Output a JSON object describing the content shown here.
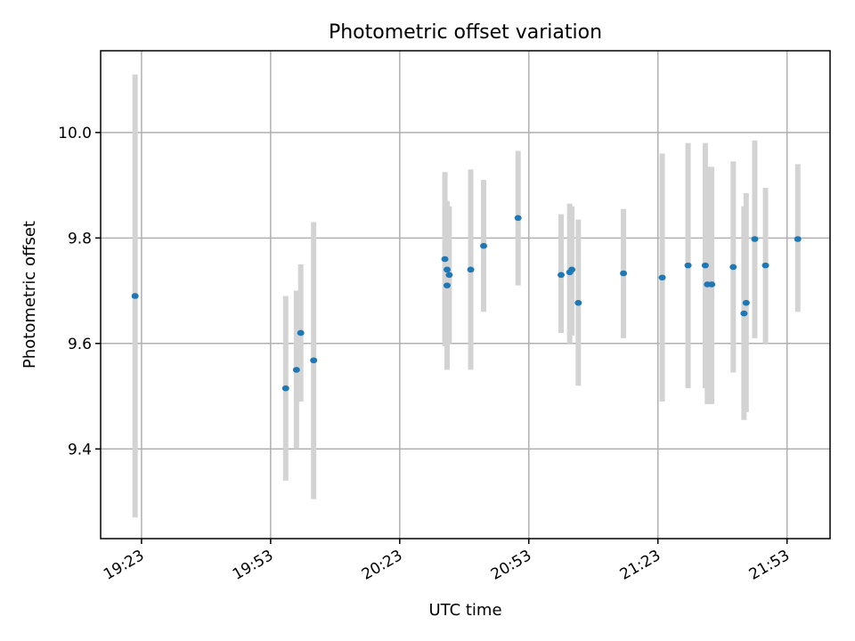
{
  "chart_data": {
    "type": "scatter",
    "title": "Photometric offset variation",
    "xlabel": "UTC time",
    "ylabel": "Photometric offset",
    "x_ticks": [
      "19:23",
      "19:53",
      "20:23",
      "20:53",
      "21:23",
      "21:53"
    ],
    "y_ticks": [
      9.4,
      9.6,
      9.8,
      10.0
    ],
    "y_tick_labels": [
      "9.4",
      "9.6",
      "9.8",
      "10.0"
    ],
    "xlim": [
      "19:13.5",
      "22:03"
    ],
    "ylim": [
      9.23,
      10.155
    ],
    "grid": true,
    "marker_color": "#1f77b4",
    "errorbar_color": "#d3d3d3",
    "points": [
      {
        "x": "19:21.5",
        "y": 9.69,
        "ymin": 9.27,
        "ymax": 10.11
      },
      {
        "x": "19:56.5",
        "y": 9.515,
        "ymin": 9.34,
        "ymax": 9.69
      },
      {
        "x": "19:59.0",
        "y": 9.55,
        "ymin": 9.4,
        "ymax": 9.7
      },
      {
        "x": "20:00.0",
        "y": 9.62,
        "ymin": 9.49,
        "ymax": 9.75
      },
      {
        "x": "20:03.0",
        "y": 9.568,
        "ymin": 9.305,
        "ymax": 9.83
      },
      {
        "x": "20:33.5",
        "y": 9.76,
        "ymin": 9.595,
        "ymax": 9.925
      },
      {
        "x": "20:34.0",
        "y": 9.71,
        "ymin": 9.55,
        "ymax": 9.87
      },
      {
        "x": "20:34.0",
        "y": 9.74,
        "ymin": 9.62,
        "ymax": 9.86
      },
      {
        "x": "20:34.5",
        "y": 9.73,
        "ymin": 9.6,
        "ymax": 9.86
      },
      {
        "x": "20:39.5",
        "y": 9.74,
        "ymin": 9.55,
        "ymax": 9.93
      },
      {
        "x": "20:42.5",
        "y": 9.785,
        "ymin": 9.66,
        "ymax": 9.91
      },
      {
        "x": "20:50.5",
        "y": 9.838,
        "ymin": 9.71,
        "ymax": 9.965
      },
      {
        "x": "21:00.5",
        "y": 9.73,
        "ymin": 9.62,
        "ymax": 9.845
      },
      {
        "x": "21:02.5",
        "y": 9.735,
        "ymin": 9.6,
        "ymax": 9.865
      },
      {
        "x": "21:03.0",
        "y": 9.74,
        "ymin": 9.615,
        "ymax": 9.86
      },
      {
        "x": "21:04.5",
        "y": 9.677,
        "ymin": 9.52,
        "ymax": 9.835
      },
      {
        "x": "21:15.0",
        "y": 9.733,
        "ymin": 9.61,
        "ymax": 9.855
      },
      {
        "x": "21:24.0",
        "y": 9.725,
        "ymin": 9.49,
        "ymax": 9.96
      },
      {
        "x": "21:30.0",
        "y": 9.748,
        "ymin": 9.515,
        "ymax": 9.98
      },
      {
        "x": "21:34.0",
        "y": 9.748,
        "ymin": 9.515,
        "ymax": 9.98
      },
      {
        "x": "21:34.5",
        "y": 9.712,
        "ymin": 9.485,
        "ymax": 9.935
      },
      {
        "x": "21:35.5",
        "y": 9.712,
        "ymin": 9.485,
        "ymax": 9.935
      },
      {
        "x": "21:40.5",
        "y": 9.745,
        "ymin": 9.545,
        "ymax": 9.945
      },
      {
        "x": "21:43.0",
        "y": 9.657,
        "ymin": 9.455,
        "ymax": 9.86
      },
      {
        "x": "21:43.5",
        "y": 9.677,
        "ymin": 9.47,
        "ymax": 9.885
      },
      {
        "x": "21:45.5",
        "y": 9.798,
        "ymin": 9.61,
        "ymax": 9.985
      },
      {
        "x": "21:48.0",
        "y": 9.748,
        "ymin": 9.6,
        "ymax": 9.895
      },
      {
        "x": "21:55.5",
        "y": 9.798,
        "ymin": 9.66,
        "ymax": 9.94
      }
    ]
  }
}
